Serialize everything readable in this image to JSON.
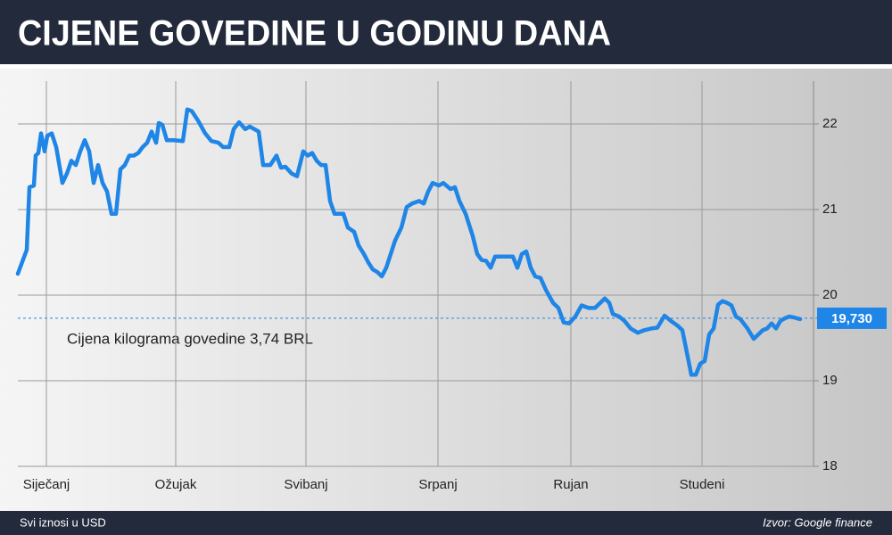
{
  "chart_data": {
    "type": "line",
    "title": "CIJENE GOVEDINE U GODINU DANA",
    "annotation": "Cijena kilograma govedine 3,74 BRL",
    "footnote": "Svi iznosi u USD",
    "source": "Izvor: Google finance",
    "color": "#1f85e6",
    "grid": true,
    "xlim": [
      0,
      892
    ],
    "ylim": [
      18,
      22.5
    ],
    "yticks": [
      18,
      19,
      20,
      21,
      22
    ],
    "xticks": [
      {
        "value": 32,
        "label": "Siječanj"
      },
      {
        "value": 177,
        "label": "Ožujak"
      },
      {
        "value": 323,
        "label": "Svibanj"
      },
      {
        "value": 471,
        "label": "Srpanj"
      },
      {
        "value": 620,
        "label": "Rujan"
      },
      {
        "value": 767,
        "label": "Studeni"
      }
    ],
    "reference": {
      "value": 19.73,
      "label": "19,730"
    },
    "x": [
      0,
      10,
      13,
      18,
      20,
      23,
      26,
      30,
      33,
      38,
      43,
      50,
      55,
      60,
      65,
      70,
      75,
      80,
      85,
      90,
      95,
      100,
      105,
      110,
      115,
      120,
      125,
      130,
      135,
      140,
      145,
      150,
      155,
      158,
      162,
      167,
      175,
      185,
      190,
      195,
      202,
      210,
      217,
      225,
      230,
      237,
      242,
      248,
      255,
      260,
      270,
      275,
      283,
      290,
      295,
      300,
      307,
      313,
      320,
      325,
      330,
      335,
      340,
      345,
      350,
      355,
      365,
      370,
      377,
      382,
      388,
      393,
      398,
      403,
      408,
      413,
      418,
      423,
      430,
      436,
      442,
      450,
      455,
      460,
      465,
      472,
      477,
      485,
      490,
      495,
      502,
      510,
      515,
      520,
      525,
      530,
      535,
      545,
      555,
      560,
      565,
      570,
      575,
      580,
      586,
      592,
      600,
      606,
      612,
      618,
      625,
      632,
      640,
      647,
      653,
      658,
      663,
      667,
      674,
      680,
      687,
      695,
      702,
      710,
      717,
      725,
      732,
      740,
      745,
      750,
      755,
      760,
      765,
      770,
      775,
      780,
      785,
      790,
      795,
      800,
      805,
      810,
      818,
      825,
      830,
      835,
      840,
      845,
      850,
      855,
      860,
      865,
      870,
      877
    ],
    "values": [
      20.25,
      20.53,
      21.26,
      21.28,
      21.63,
      21.66,
      21.89,
      21.68,
      21.86,
      21.89,
      21.73,
      21.31,
      21.42,
      21.57,
      21.52,
      21.68,
      21.81,
      21.68,
      21.31,
      21.52,
      21.31,
      21.21,
      20.95,
      20.95,
      21.47,
      21.52,
      21.63,
      21.63,
      21.66,
      21.73,
      21.78,
      21.91,
      21.78,
      22.01,
      21.99,
      21.81,
      21.81,
      21.8,
      22.17,
      22.15,
      22.04,
      21.89,
      21.8,
      21.78,
      21.73,
      21.73,
      21.94,
      22.02,
      21.94,
      21.97,
      21.91,
      21.52,
      21.52,
      21.63,
      21.49,
      21.5,
      21.42,
      21.39,
      21.68,
      21.63,
      21.66,
      21.57,
      21.52,
      21.52,
      21.1,
      20.95,
      20.95,
      20.79,
      20.74,
      20.58,
      20.48,
      20.38,
      20.3,
      20.27,
      20.22,
      20.32,
      20.48,
      20.64,
      20.79,
      21.03,
      21.07,
      21.1,
      21.07,
      21.21,
      21.31,
      21.28,
      21.31,
      21.24,
      21.26,
      21.1,
      20.95,
      20.69,
      20.48,
      20.41,
      20.4,
      20.32,
      20.45,
      20.45,
      20.45,
      20.32,
      20.48,
      20.51,
      20.32,
      20.22,
      20.2,
      20.06,
      19.91,
      19.85,
      19.68,
      19.67,
      19.75,
      19.88,
      19.85,
      19.85,
      19.91,
      19.96,
      19.91,
      19.78,
      19.75,
      19.7,
      19.61,
      19.56,
      19.59,
      19.61,
      19.62,
      19.76,
      19.7,
      19.64,
      19.59,
      19.33,
      19.07,
      19.07,
      19.2,
      19.23,
      19.54,
      19.61,
      19.89,
      19.93,
      19.91,
      19.88,
      19.75,
      19.72,
      19.61,
      19.49,
      19.54,
      19.59,
      19.61,
      19.67,
      19.61,
      19.7,
      19.73,
      19.75,
      19.74,
      19.72
    ]
  }
}
